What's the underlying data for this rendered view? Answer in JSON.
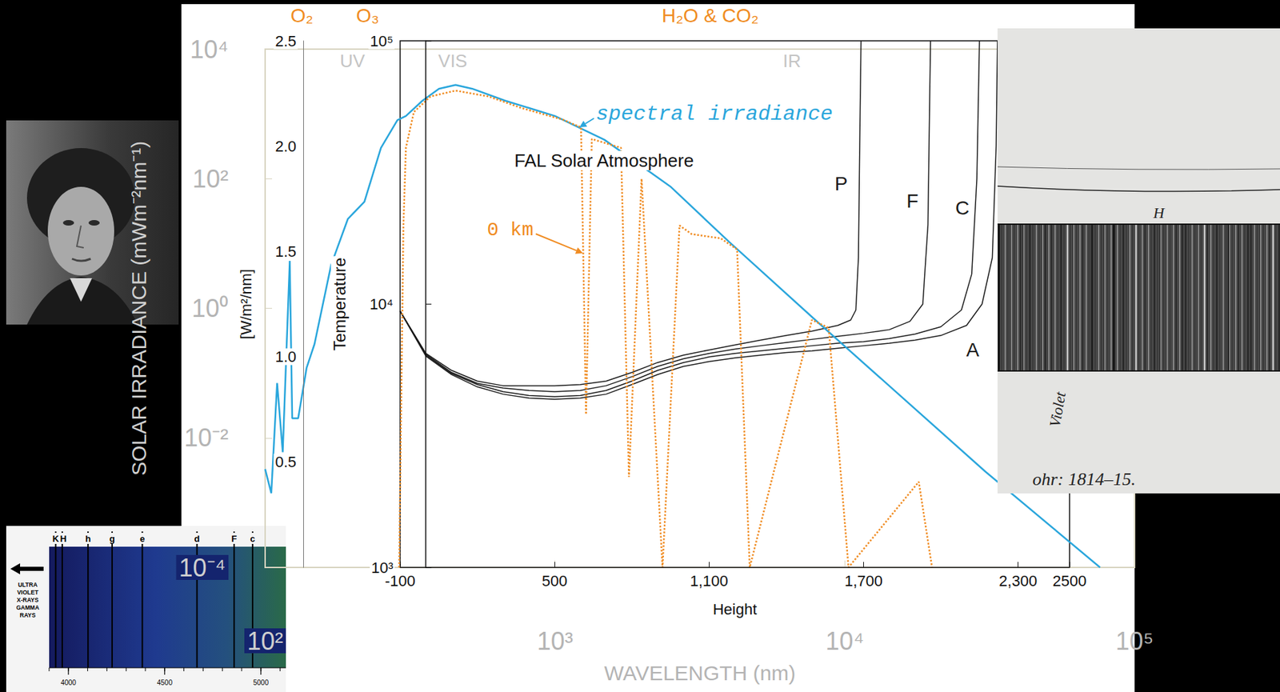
{
  "chart_data": [
    {
      "type": "line",
      "xlabel": "WAVELENGTH (nm)",
      "ylabel": "SOLAR IRRADIANCE (mWm⁻²nm⁻¹)",
      "log": true,
      "xlim": [
        100,
        100000
      ],
      "xticks": [
        {
          "value": 100,
          "label": "10²"
        },
        {
          "value": 1000,
          "label": "10³"
        },
        {
          "value": 10000,
          "label": "10⁴"
        },
        {
          "value": 100000,
          "label": "10⁵"
        }
      ],
      "ylim": [
        0.0001,
        10000
      ],
      "yticks": [
        {
          "value": 0.0001,
          "label": "10⁻⁴"
        },
        {
          "value": 0.01,
          "label": "10⁻²"
        },
        {
          "value": 1,
          "label": "10⁰"
        },
        {
          "value": 100,
          "label": "10²"
        },
        {
          "value": 10000,
          "label": "10⁴"
        }
      ],
      "grid": false,
      "annotations": [
        "O₂",
        "O₃",
        "H₂O & CO₂",
        "UV",
        "VIS",
        "IR"
      ],
      "series": [
        {
          "name": "spectral irradiance",
          "color": "#2aa6dc",
          "line_style": "solid",
          "x": [
            100,
            105,
            110,
            115,
            121.6,
            124,
            130,
            139,
            148,
            169,
            193,
            220,
            251,
            286,
            306,
            349,
            398,
            454,
            518,
            673,
            1000,
            1480,
            2500,
            3980,
            8100,
            30600,
            76000
          ],
          "values": [
            0.0033,
            0.0014,
            0.07,
            0.006,
            5.4,
            0.02,
            0.02,
            0.12,
            0.28,
            4.7,
            24,
            44,
            300,
            800,
            930,
            1600,
            2450,
            2800,
            2450,
            1600,
            930,
            400,
            76,
            10.7,
            0.6,
            0.003,
            0.0001
          ]
        },
        {
          "name": "0 km",
          "color": "#f08c22",
          "line_style": "dotted",
          "x": [
            290,
            300,
            306,
            326,
            372,
            454,
            590,
            768,
            1070,
            1230,
            1280,
            1340,
            1690,
            1800,
            1990,
            2350,
            2690,
            2960,
            3730,
            4250,
            4700,
            7700,
            8800,
            10300,
            18000,
            20000
          ],
          "values": [
            0.0001,
            19,
            300,
            1070,
            1860,
            2290,
            1860,
            1230,
            810,
            620,
            0.023,
            410,
            300,
            0.0025,
            100,
            0.0001,
            19,
            14,
            12,
            8.1,
            0.0001,
            0.66,
            0.5,
            0.0001,
            0.0021,
            0.0001
          ]
        }
      ]
    },
    {
      "type": "line",
      "title": "FAL Solar Atmosphere",
      "xlabel": "Height",
      "ylabel": "Temperature",
      "y2label": "[W/m²/nm]",
      "log": "y",
      "xlim": [
        -100,
        2500
      ],
      "xticks": [
        -100,
        500,
        {
          "value": 1100,
          "label": "1,100"
        },
        {
          "value": 1700,
          "label": "1,700"
        },
        {
          "value": 2300,
          "label": "2,300"
        },
        2500
      ],
      "ylim": [
        1000,
        100000
      ],
      "yticks": [
        {
          "value": 1000,
          "label": "10³"
        },
        {
          "value": 10000,
          "label": "10⁴"
        },
        {
          "value": 100000,
          "label": "10⁵"
        }
      ],
      "y2lim": [
        0,
        2.5
      ],
      "y2ticks": [
        0.5,
        {
          "value": 1,
          "label": "1.0"
        },
        1.5,
        {
          "value": 2,
          "label": "2.0"
        },
        2.5
      ],
      "grid": false,
      "series": [
        {
          "name": "P",
          "color": "#1a1a1a",
          "x": [
            -100,
            0,
            100,
            200,
            300,
            400,
            500,
            600,
            700,
            800,
            900,
            1000,
            1100,
            1200,
            1300,
            1400,
            1500,
            1600,
            1650,
            1670,
            1680,
            1685,
            1690
          ],
          "values": [
            9400,
            6500,
            5600,
            5100,
            4900,
            4900,
            4900,
            4950,
            5100,
            5500,
            6000,
            6400,
            6700,
            7000,
            7300,
            7600,
            7900,
            8300,
            8700,
            9500,
            15000,
            40000,
            100000
          ]
        },
        {
          "name": "F",
          "color": "#1a1a1a",
          "x": [
            -100,
            0,
            100,
            200,
            300,
            400,
            500,
            600,
            700,
            800,
            900,
            1000,
            1100,
            1200,
            1300,
            1400,
            1500,
            1600,
            1700,
            1800,
            1880,
            1930,
            1950,
            1960
          ],
          "values": [
            9400,
            6450,
            5500,
            5000,
            4800,
            4700,
            4650,
            4700,
            4900,
            5300,
            5800,
            6200,
            6500,
            6750,
            6950,
            7150,
            7350,
            7550,
            7750,
            8000,
            8600,
            10000,
            20000,
            100000
          ]
        },
        {
          "name": "C",
          "color": "#1a1a1a",
          "x": [
            -100,
            0,
            100,
            200,
            300,
            400,
            500,
            600,
            700,
            800,
            900,
            1000,
            1100,
            1200,
            1300,
            1400,
            1500,
            1600,
            1700,
            1800,
            1900,
            2000,
            2080,
            2120,
            2140,
            2150
          ],
          "values": [
            9400,
            6400,
            5450,
            4950,
            4650,
            4500,
            4450,
            4500,
            4700,
            5100,
            5600,
            6000,
            6300,
            6500,
            6650,
            6800,
            6950,
            7100,
            7200,
            7400,
            7700,
            8200,
            9500,
            13000,
            30000,
            100000
          ]
        },
        {
          "name": "A",
          "color": "#1a1a1a",
          "x": [
            -100,
            0,
            100,
            200,
            300,
            400,
            500,
            600,
            700,
            800,
            900,
            1000,
            1100,
            1200,
            1300,
            1400,
            1500,
            1600,
            1700,
            1800,
            1900,
            2000,
            2100,
            2160,
            2200,
            2215,
            2220
          ],
          "values": [
            9400,
            6350,
            5400,
            4850,
            4550,
            4400,
            4350,
            4400,
            4550,
            4950,
            5400,
            5800,
            6050,
            6250,
            6400,
            6550,
            6650,
            6800,
            6950,
            7100,
            7300,
            7600,
            8300,
            10000,
            15000,
            40000,
            100000
          ]
        }
      ]
    }
  ],
  "spectrum_strip": {
    "arrow_text": [
      "ULTRA",
      "VIOLET",
      "X-RAYS",
      "GAMMA",
      "RAYS"
    ],
    "xlim": [
      3900,
      5130
    ],
    "xticks": [
      4000,
      4500,
      5000
    ],
    "lines": [
      {
        "label": "K",
        "value": 3934
      },
      {
        "label": "H",
        "value": 3968
      },
      {
        "label": "h",
        "value": 4102
      },
      {
        "label": "g",
        "value": 4227
      },
      {
        "label": "e",
        "value": 4384
      },
      {
        "label": "d",
        "value": 4668
      },
      {
        "label": "F",
        "value": 4861
      },
      {
        "label": "c",
        "value": 4957
      }
    ]
  },
  "fraunhofer_drawing": {
    "band_label": "H",
    "side_label": "Violet",
    "caption": "ohr: 1814–15."
  }
}
